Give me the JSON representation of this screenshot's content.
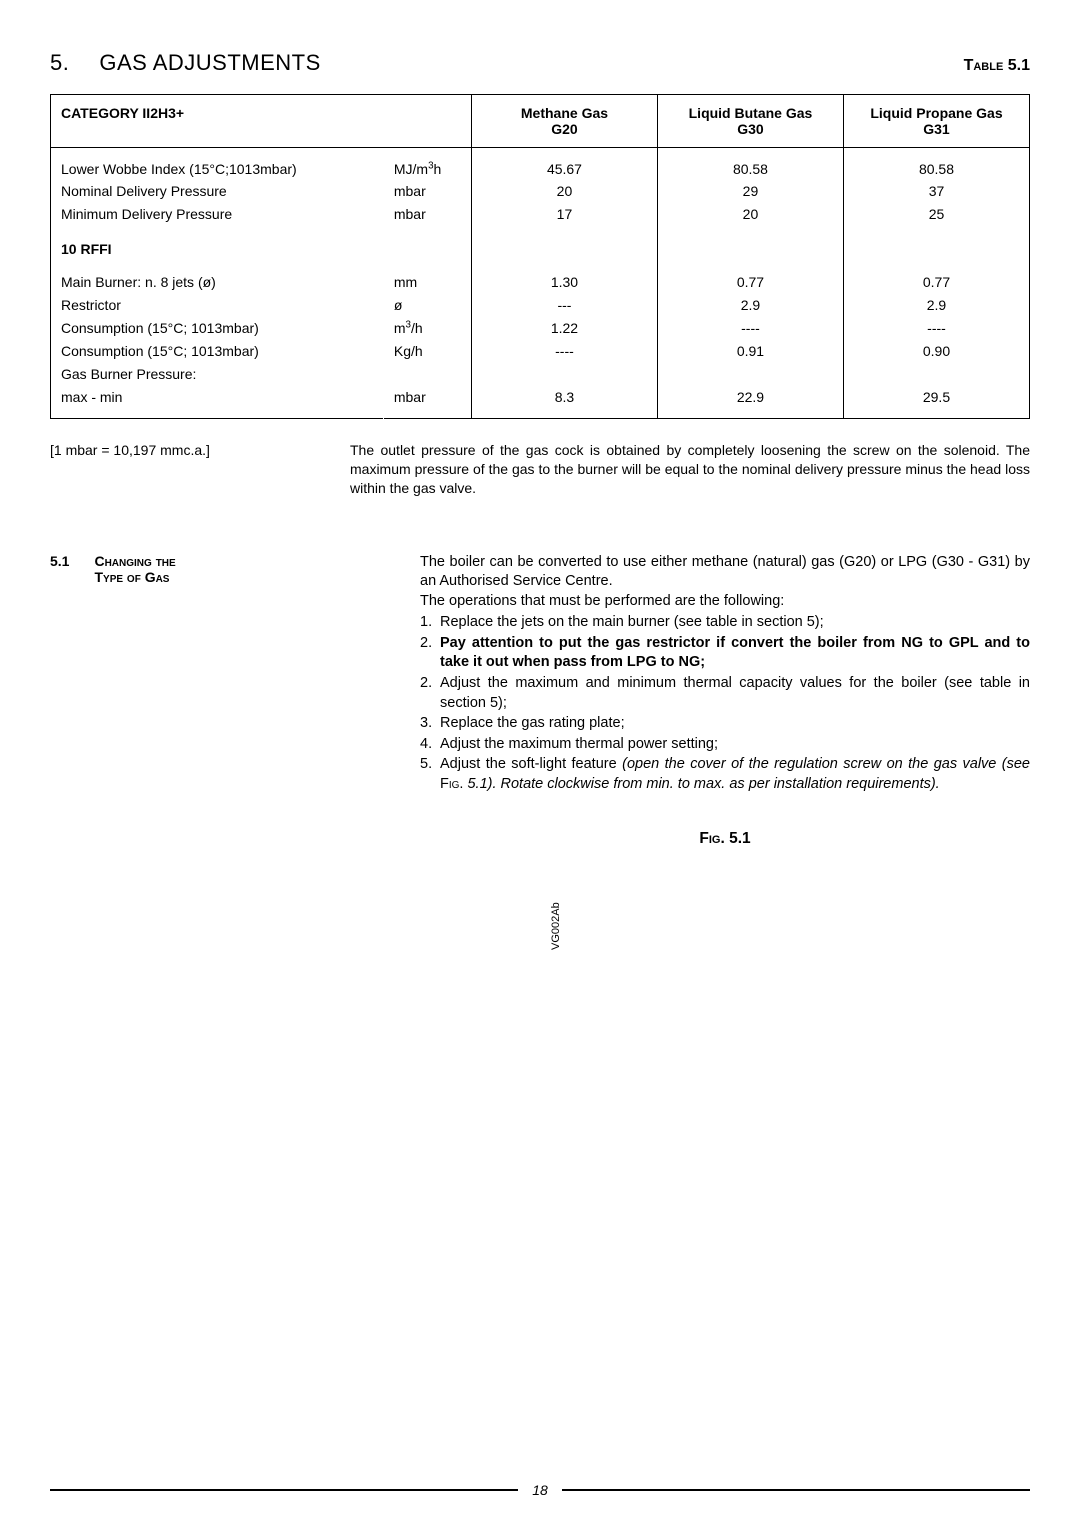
{
  "header": {
    "section_number": "5.",
    "section_title": "GAS ADJUSTMENTS",
    "table_label": "Table 5.1"
  },
  "table": {
    "category_header": "CATEGORY II2H3+",
    "gas_columns": [
      {
        "name": "Methane Gas",
        "code": "G20"
      },
      {
        "name": "Liquid Butane Gas",
        "code": "G30"
      },
      {
        "name": "Liquid Propane Gas",
        "code": "G31"
      }
    ],
    "group1": [
      {
        "param": "Lower Wobbe Index (15°C;1013mbar)",
        "unit_html": "MJ/m<sup>3</sup>h",
        "g20": "45.67",
        "g30": "80.58",
        "g31": "80.58"
      },
      {
        "param": "Nominal Delivery Pressure",
        "unit_html": "mbar",
        "g20": "20",
        "g30": "29",
        "g31": "37"
      },
      {
        "param": "Minimum Delivery Pressure",
        "unit_html": "mbar",
        "g20": "17",
        "g30": "20",
        "g31": "25"
      }
    ],
    "sub_header": "10 RFFI",
    "group2": [
      {
        "param": "Main Burner: n. 8 jets (ø)",
        "unit_html": "mm",
        "g20": "1.30",
        "g30": "0.77",
        "g31": "0.77"
      },
      {
        "param": "Restrictor",
        "unit_html": "ø",
        "g20": "---",
        "g30": "2.9",
        "g31": "2.9"
      },
      {
        "param": "Consumption (15°C; 1013mbar)",
        "unit_html": "m<sup>3</sup>/h",
        "g20": "1.22",
        "g30": "----",
        "g31": "----"
      },
      {
        "param": "Consumption (15°C; 1013mbar)",
        "unit_html": "Kg/h",
        "g20": "----",
        "g30": "0.91",
        "g31": "0.90"
      },
      {
        "param": "Gas Burner Pressure:",
        "unit_html": "",
        "g20": "",
        "g30": "",
        "g31": ""
      },
      {
        "param": "max - min",
        "unit_html": "mbar",
        "g20": "8.3",
        "g30": "22.9",
        "g31": "29.5"
      }
    ]
  },
  "notes": {
    "conversion": "[1 mbar = 10,197 mmc.a.]",
    "outlet_text": "The outlet pressure of the gas cock is obtained by completely loosening the screw on the solenoid. The maximum pressure of the gas to the burner will be equal to the nominal delivery pressure minus the head loss within the gas valve."
  },
  "subsection": {
    "number": "5.1",
    "title_line1": "Changing the",
    "title_line2": "Type of Gas",
    "intro1": "The boiler can be converted to use either methane (natural) gas (G20) or LPG (G30 - G31) by an Authorised Service Centre.",
    "intro2": "The operations that must be performed are the following:",
    "steps": [
      {
        "n": "1.",
        "html": "Replace the jets on the main burner (see table in section 5);"
      },
      {
        "n": "2.",
        "html": "<span class=\"bold\">Pay attention to put the gas restrictor if convert the boiler from NG to GPL and to take it out when pass from LPG to NG;</span>"
      },
      {
        "n": "2.",
        "html": "Adjust the maximum and minimum thermal capacity values for the boiler (see table in section 5);"
      },
      {
        "n": "3.",
        "html": "Replace the gas rating plate;"
      },
      {
        "n": "4.",
        "html": "Adjust the maximum thermal power setting;"
      },
      {
        "n": "5.",
        "html": "Adjust the soft-light feature <span class=\"italic\">(open the cover of the regulation screw on the gas valve (see </span><span class=\"smallcaps\">Fig.</span><span class=\"italic\"> 5.1). Rotate clockwise from min. to max. as per installation requirements).</span>"
      }
    ]
  },
  "figure": {
    "label": "Fig. 5.1",
    "vg": "VG002Ab"
  },
  "footer": {
    "page": "18"
  }
}
